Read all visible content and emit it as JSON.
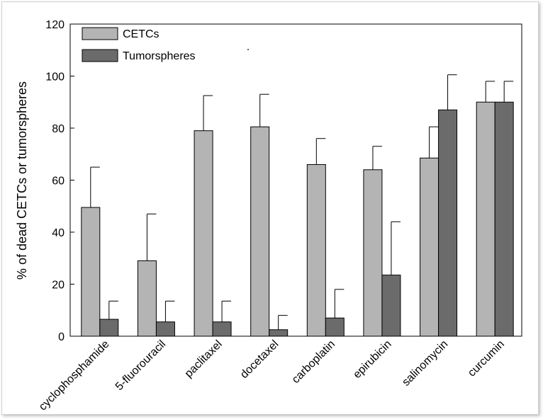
{
  "chart_data": {
    "type": "bar",
    "title": "",
    "xlabel": "",
    "ylabel": "% of dead CETCs or tumorspheres",
    "ylim": [
      0,
      120
    ],
    "yticks": [
      0,
      20,
      40,
      60,
      80,
      100,
      120
    ],
    "grid": false,
    "legend_position": "top-left",
    "categories": [
      "cyclophosphamide",
      "5-fluorouracil",
      "paclitaxel",
      "docetaxel",
      "carboplatin",
      "epirubicin",
      "salinomycin",
      "curcumin"
    ],
    "series": [
      {
        "name": "CETCs",
        "color": "#b4b4b4",
        "values": [
          49.5,
          29,
          79,
          80.5,
          66,
          64,
          68.5,
          90
        ],
        "error_plus": [
          15.5,
          18,
          13.5,
          12.5,
          10,
          9,
          12,
          8
        ]
      },
      {
        "name": "Tumorspheres",
        "color": "#6b6b6b",
        "values": [
          6.5,
          5.5,
          5.5,
          2.5,
          7,
          23.5,
          87,
          90
        ],
        "error_plus": [
          7,
          8,
          8,
          5.5,
          11,
          20.5,
          13.5,
          8
        ]
      }
    ]
  }
}
